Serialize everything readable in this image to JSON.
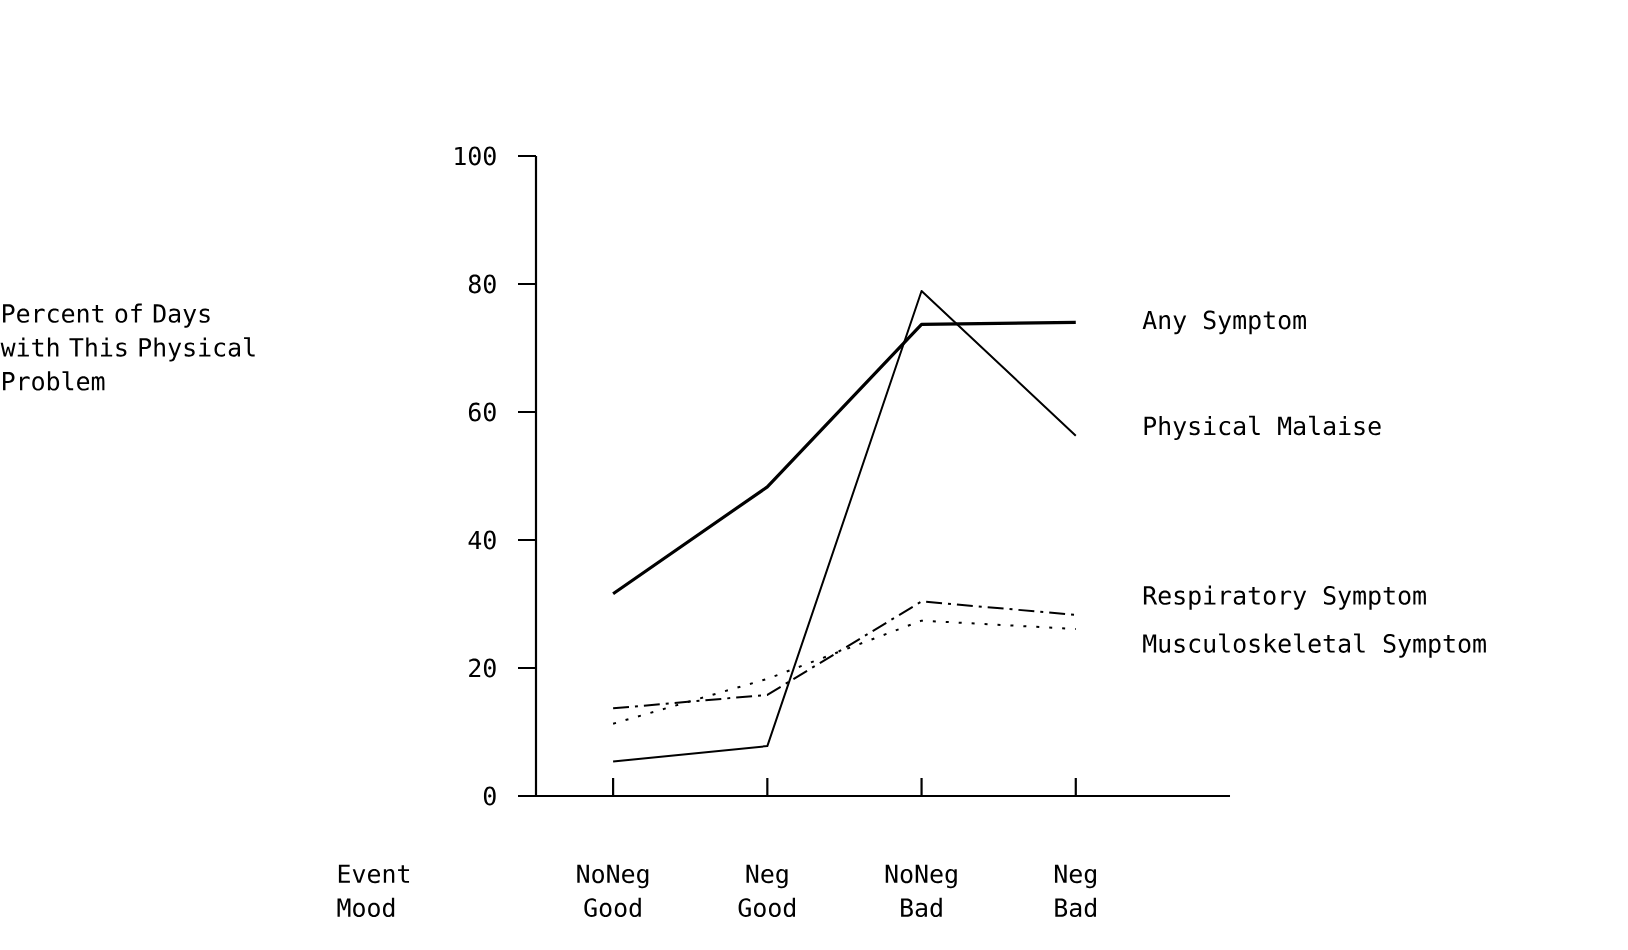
{
  "chart_data": {
    "type": "line",
    "categories": [
      "NoNeg Good",
      "Neg Good",
      "NoNeg Bad",
      "Neg Bad"
    ],
    "xlabel": "Event Mood",
    "annotations": [
      "Percent of Days with This Physical Problem"
    ],
    "ylim": [
      0,
      100
    ],
    "yticks": [
      0,
      20,
      40,
      60,
      80,
      100
    ],
    "legend": false,
    "grid": false,
    "marker": "none",
    "series": [
      {
        "name": "Any Symptom",
        "color": "#000000",
        "line_style": "solid",
        "values": [
          31.6,
          48.3,
          73.7,
          74
        ]
      },
      {
        "name": "Physical Malaise",
        "color": "#000000",
        "line_style": "solid",
        "values": [
          5.4,
          7.8,
          78.9,
          56.3
        ]
      },
      {
        "name": "Respiratory Symptom",
        "color": "#000000",
        "line_style": "dashed",
        "values": [
          13.7,
          15.8,
          30.4,
          28.3
        ]
      },
      {
        "name": "Musculoskeletal Symptom",
        "color": "#000000",
        "line_style": "dotted",
        "values": [
          11.3,
          18.3,
          27.4,
          26.1
        ]
      }
    ]
  }
}
